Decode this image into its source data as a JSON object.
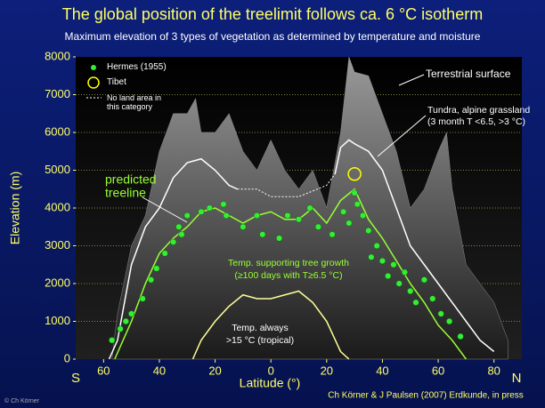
{
  "chart_data": {
    "type": "line",
    "title": "The global position of the treelimit follows ca. 6 °C isotherm",
    "subtitle": "Maximum elevation of 3 types of vegetation as determined by temperature and moisture",
    "xlabel": "Latitude (°)",
    "ylabel": "Elevation (m)",
    "xlim": [
      -70,
      90
    ],
    "ylim": [
      0,
      8000
    ],
    "xticks": [
      {
        "value": -60,
        "label": "60"
      },
      {
        "value": -40,
        "label": "40"
      },
      {
        "value": -20,
        "label": "20"
      },
      0,
      20,
      40,
      60,
      80
    ],
    "yticks": [
      0,
      1000,
      2000,
      3000,
      4000,
      5000,
      6000,
      7000,
      8000
    ],
    "grid": true,
    "series": [
      {
        "name": "Terrestrial surface",
        "type": "area",
        "color": "#8a8a8a",
        "x": [
          -57,
          -55,
          -50,
          -45,
          -40,
          -35,
          -30,
          -27,
          -25,
          -20,
          -15,
          -10,
          -5,
          0,
          5,
          10,
          15,
          20,
          25,
          28,
          30,
          35,
          40,
          45,
          50,
          55,
          60,
          63,
          65,
          70,
          75,
          80,
          85
        ],
        "values": [
          0,
          1200,
          3000,
          3800,
          5500,
          6500,
          6500,
          6900,
          6000,
          6000,
          6500,
          5500,
          5000,
          5800,
          5000,
          4500,
          5000,
          4000,
          6000,
          8000,
          7600,
          7500,
          6500,
          5500,
          4000,
          4500,
          5500,
          6000,
          4500,
          2500,
          2000,
          1500,
          500
        ]
      },
      {
        "name": "Tundra, alpine grassland",
        "type": "line",
        "color": "#ffffff",
        "x": [
          -58,
          -55,
          -50,
          -45,
          -40,
          -35,
          -30,
          -25,
          -20,
          -15,
          -12,
          -5,
          0,
          10,
          20,
          23,
          25,
          28,
          30,
          35,
          40,
          45,
          50,
          55,
          60,
          65,
          70,
          75,
          80
        ],
        "values": [
          0,
          500,
          2500,
          3500,
          4000,
          4800,
          5200,
          5300,
          5000,
          4600,
          4500,
          null,
          null,
          null,
          null,
          4900,
          5600,
          5800,
          5700,
          5500,
          5000,
          4000,
          3000,
          2500,
          2000,
          1500,
          1000,
          500,
          200
        ]
      },
      {
        "name": "No land area in this category",
        "type": "line",
        "dash": "2,2",
        "color": "#ffffff",
        "x": [
          -12,
          -5,
          0,
          10,
          20,
          23
        ],
        "values": [
          4500,
          4500,
          4300,
          4300,
          4600,
          4900
        ]
      },
      {
        "name": "predicted treeline",
        "type": "line",
        "color": "#99ff33",
        "x": [
          -56,
          -50,
          -45,
          -40,
          -35,
          -30,
          -25,
          -20,
          -15,
          -10,
          -5,
          0,
          5,
          10,
          15,
          20,
          25,
          30,
          35,
          40,
          45,
          50,
          55,
          60,
          65,
          70
        ],
        "values": [
          0,
          1000,
          2000,
          2800,
          3200,
          3500,
          3900,
          4000,
          3800,
          3600,
          3800,
          3900,
          3700,
          3700,
          4000,
          3600,
          4200,
          4500,
          3700,
          3200,
          2600,
          2000,
          1500,
          900,
          500,
          0
        ]
      },
      {
        "name": "Temp. always >15 °C",
        "type": "line",
        "color": "#ffff99",
        "x": [
          -28,
          -25,
          -20,
          -15,
          -10,
          -5,
          0,
          5,
          10,
          15,
          20,
          25,
          28
        ],
        "values": [
          0,
          500,
          1000,
          1400,
          1700,
          1600,
          1600,
          1700,
          1800,
          1500,
          1000,
          200,
          0
        ]
      },
      {
        "name": "Hermes (1955)",
        "type": "scatter",
        "marker": "dot",
        "color": "#33ee33",
        "x": [
          -57,
          -54,
          -52,
          -50,
          -46,
          -43,
          -41,
          -38,
          -35,
          -33,
          -32,
          -30,
          -25,
          -22,
          -17,
          -16,
          -10,
          -5,
          -3,
          3,
          6,
          10,
          14,
          17,
          22,
          26,
          28,
          30,
          31,
          33,
          35,
          36,
          38,
          40,
          42,
          44,
          46,
          48,
          50,
          52,
          55,
          58,
          61,
          64,
          68
        ],
        "values": [
          500,
          800,
          1000,
          1200,
          1600,
          2100,
          2400,
          2800,
          3100,
          3500,
          3300,
          3800,
          3900,
          4000,
          4100,
          3800,
          3500,
          3800,
          3300,
          3200,
          3800,
          3700,
          4000,
          3500,
          3300,
          3900,
          3600,
          4400,
          4100,
          3800,
          3400,
          2700,
          3000,
          2600,
          2200,
          2500,
          2000,
          2300,
          1800,
          1500,
          2100,
          1600,
          1200,
          1000,
          600
        ]
      },
      {
        "name": "Tibet",
        "type": "scatter",
        "marker": "ring",
        "color": "#ffff00",
        "x": [
          30
        ],
        "values": [
          4900
        ]
      }
    ],
    "annotations": [
      "Terrestrial surface",
      "Tundra, alpine grassland",
      "(3 month T <6.5, >3 °C)",
      "predicted",
      "treeline",
      "Temp. supporting tree growth",
      "(≥100 days with T≥6.5 °C)",
      "Temp. always",
      ">15 °C (tropical)",
      "S",
      "N",
      "Ch Körner & J Paulsen (2007) Erdkunde, in press",
      "© Ch Körner"
    ]
  }
}
